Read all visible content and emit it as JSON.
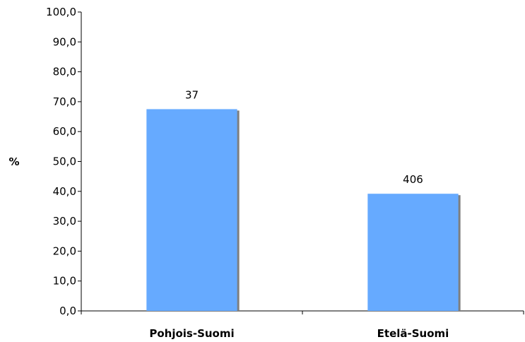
{
  "chart_data": {
    "type": "bar",
    "ylabel": "%",
    "categories": [
      "Pohjois-Suomi",
      "Etelä-Suomi"
    ],
    "values": [
      67.5,
      39.2
    ],
    "data_labels": [
      "37",
      "406"
    ],
    "ylim": [
      0,
      100
    ],
    "ytick_labels": [
      "0,0",
      "10,0",
      "20,0",
      "30,0",
      "40,0",
      "50,0",
      "60,0",
      "70,0",
      "80,0",
      "90,0",
      "100,0"
    ],
    "grid": false,
    "legend": "none",
    "colors": {
      "bar": "#66aaff",
      "bar_shadow": "#7f7f7f",
      "axis": "#000000"
    }
  }
}
